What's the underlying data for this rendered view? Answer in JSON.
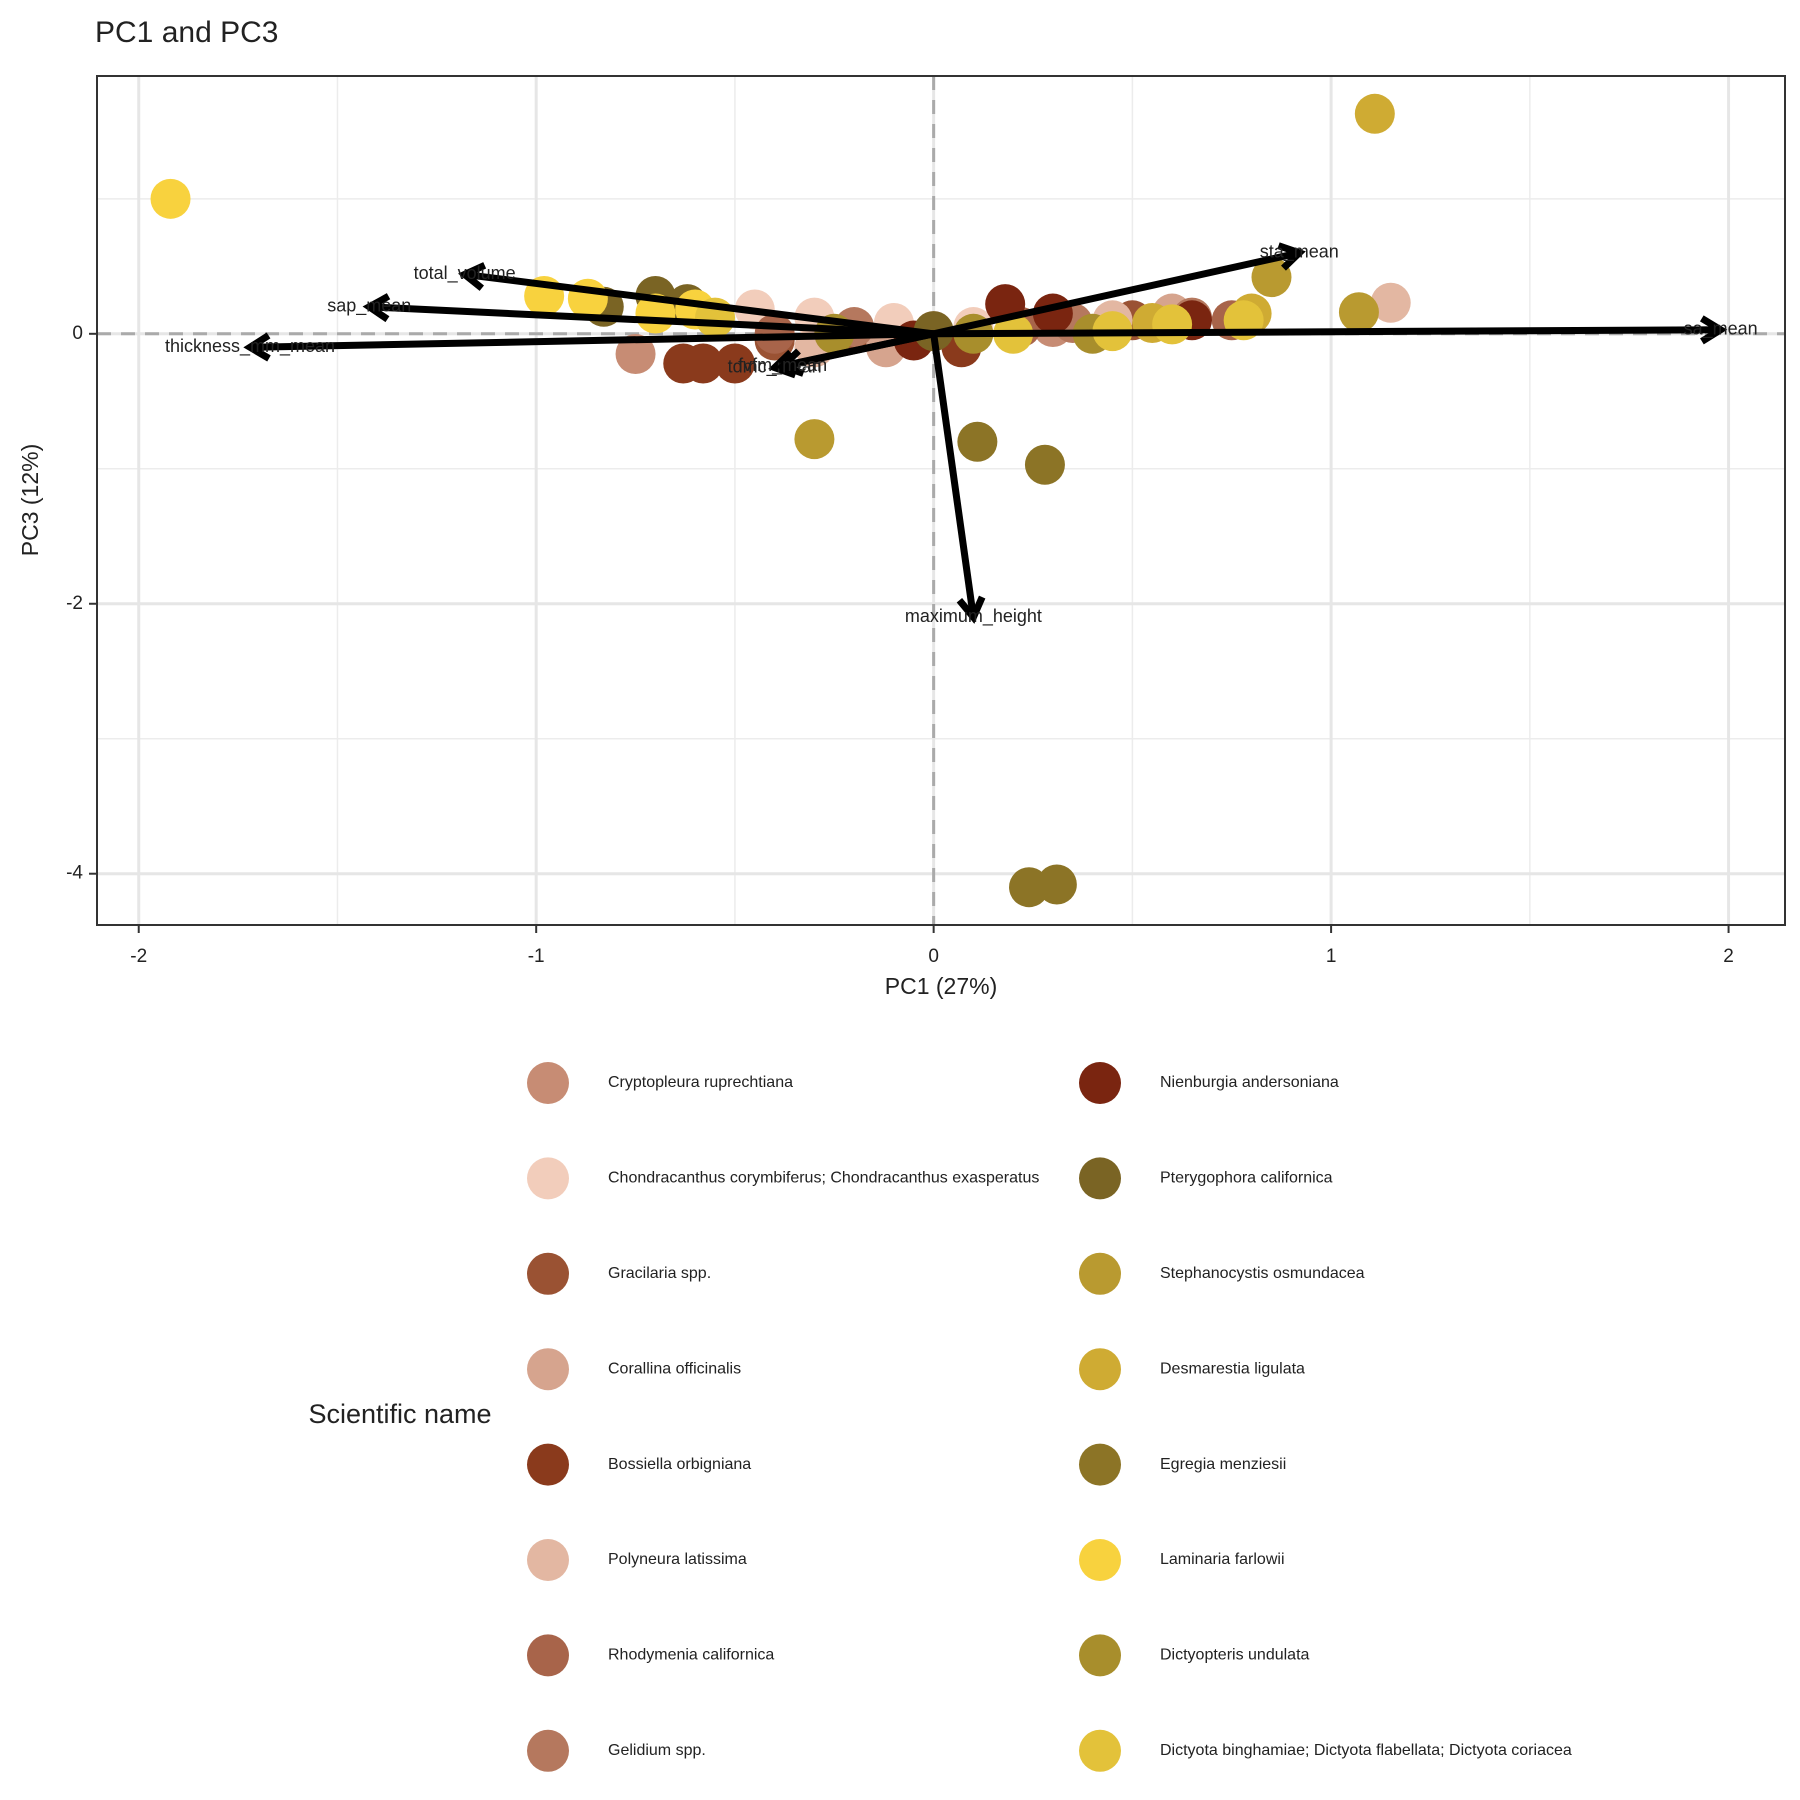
{
  "chart_data": {
    "type": "biplot",
    "title": "PC1 and PC3",
    "x_label": "PC1 (27%)",
    "y_label": "PC3 (12%)",
    "xlim": [
      -2.105,
      2.142
    ],
    "ylim": [
      -4.38,
      1.91
    ],
    "xticks": [
      -2,
      -1,
      0,
      1,
      2
    ],
    "yticks": [
      -4,
      -2,
      0
    ],
    "grid": true,
    "legend_title": "Scientific name",
    "series": [
      {
        "name": "Cryptopleura ruprechtiana",
        "color": "#C78C74",
        "x": [
          -0.75,
          0.3,
          -0.2
        ],
        "values": [
          -0.15,
          0.05,
          0.0
        ]
      },
      {
        "name": "Chondracanthus corymbiferus; Chondracanthus exasperatus",
        "color": "#F2CDBB",
        "x": [
          -0.45,
          -0.3,
          -0.1,
          0.1
        ],
        "values": [
          0.18,
          0.12,
          0.08,
          0.05
        ]
      },
      {
        "name": "Gracilaria spp.",
        "color": "#9A5233",
        "x": [
          -0.4,
          -0.2,
          0.5
        ],
        "values": [
          -0.05,
          0.0,
          0.1
        ]
      },
      {
        "name": "Corallina officinalis",
        "color": "#D6A48E",
        "x": [
          -0.12,
          0.0,
          0.6
        ],
        "values": [
          -0.1,
          0.02,
          0.15
        ]
      },
      {
        "name": "Bossiella orbigniana",
        "color": "#8A3A1C",
        "x": [
          -0.63,
          -0.58,
          -0.5,
          0.07
        ],
        "values": [
          -0.22,
          -0.22,
          -0.22,
          -0.1
        ]
      },
      {
        "name": "Polyneura latissima",
        "color": "#E3B7A2",
        "x": [
          1.15,
          -0.3,
          0.45
        ],
        "values": [
          0.23,
          -0.1,
          0.1
        ]
      },
      {
        "name": "Rhodymenia californica",
        "color": "#A8644A",
        "x": [
          -0.4,
          0.22,
          0.75
        ],
        "values": [
          0.0,
          0.05,
          0.1
        ]
      },
      {
        "name": "Gelidium spp.",
        "color": "#B5785E",
        "x": [
          -0.2,
          0.35,
          0.65
        ],
        "values": [
          0.05,
          0.08,
          0.12
        ]
      },
      {
        "name": "Nienburgia andersoniana",
        "color": "#7A2510",
        "x": [
          0.18,
          0.3,
          0.65,
          -0.05
        ],
        "values": [
          0.22,
          0.15,
          0.1,
          -0.05
        ]
      },
      {
        "name": "Pterygophora californica",
        "color": "#7A6424",
        "x": [
          -0.7,
          -0.62,
          -0.83,
          0.0
        ],
        "values": [
          0.28,
          0.22,
          0.2,
          0.02
        ]
      },
      {
        "name": "Stephanocystis osmundacea",
        "color": "#B99A30",
        "x": [
          -0.3,
          0.85,
          1.07
        ],
        "values": [
          -0.78,
          0.42,
          0.16
        ]
      },
      {
        "name": "Desmarestia ligulata",
        "color": "#CFAB33",
        "x": [
          1.11,
          0.8,
          0.55
        ],
        "values": [
          1.63,
          0.15,
          0.08
        ]
      },
      {
        "name": "Egregia menziesii",
        "color": "#8C7426",
        "x": [
          0.11,
          0.28,
          0.24,
          0.31
        ],
        "values": [
          -0.8,
          -0.97,
          -4.1,
          -4.08
        ]
      },
      {
        "name": "Laminaria farlowii",
        "color": "#F8D23E",
        "x": [
          -1.92,
          -0.98,
          -0.87,
          -0.7,
          -0.6
        ],
        "values": [
          1.0,
          0.28,
          0.26,
          0.15,
          0.18
        ]
      },
      {
        "name": "Dictyopteris undulata",
        "color": "#A88E2C",
        "x": [
          -0.25,
          0.1,
          0.4
        ],
        "values": [
          0.0,
          0.0,
          0.0
        ]
      },
      {
        "name": "Dictyota binghamiae; Dictyota flabellata; Dictyota coriacea",
        "color": "#E3C23A",
        "x": [
          0.45,
          0.6,
          0.78,
          0.2,
          -0.55
        ],
        "values": [
          0.02,
          0.07,
          0.1,
          0.0,
          0.12
        ]
      }
    ],
    "loadings": [
      {
        "name": "total_volume",
        "x": -1.18,
        "y": 0.44
      },
      {
        "name": "sap_mean",
        "x": -1.42,
        "y": 0.2
      },
      {
        "name": "thickness_mm_mean",
        "x": -1.72,
        "y": -0.1
      },
      {
        "name": "tdmc_mean",
        "x": -0.4,
        "y": -0.25
      },
      {
        "name": "fvfm_mean",
        "x": -0.38,
        "y": -0.24
      },
      {
        "name": "sta_mean",
        "x": 0.92,
        "y": 0.6
      },
      {
        "name": "sa_mean",
        "x": 1.98,
        "y": 0.03
      },
      {
        "name": "maximum_height",
        "x": 0.1,
        "y": -2.1
      }
    ]
  }
}
